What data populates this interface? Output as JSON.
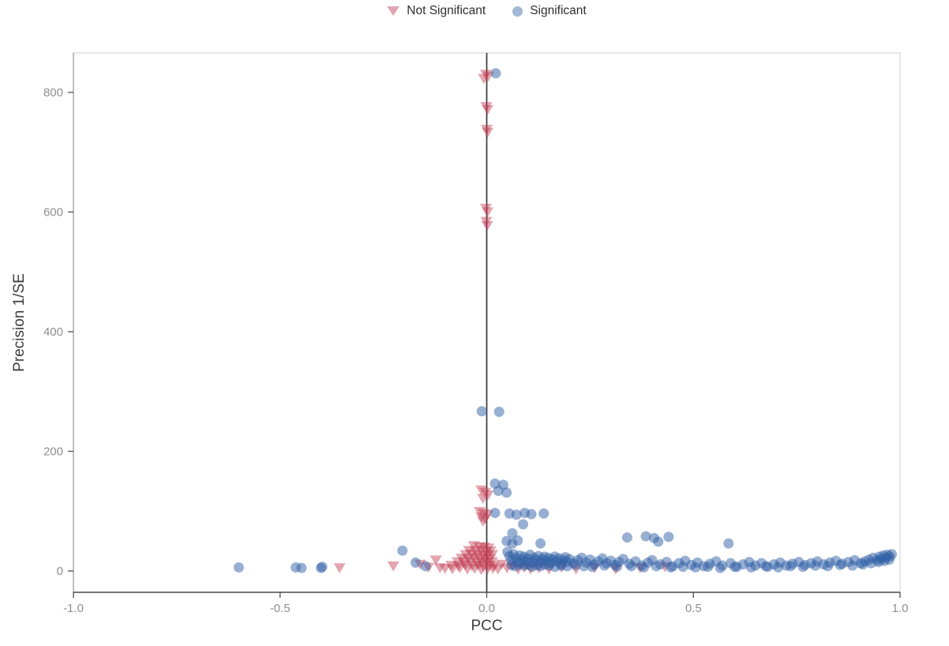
{
  "chart_data": {
    "type": "scatter",
    "title": "",
    "xlabel": "PCC",
    "ylabel": "Precision 1/SE",
    "xlim": [
      -1.0,
      1.0
    ],
    "ylim": [
      -35,
      870
    ],
    "grid": false,
    "legend_position": "top-center",
    "zero_line_x": 0.0,
    "x_ticks": {
      "values": [
        -1.0,
        -0.5,
        0.0,
        0.5,
        1.0
      ],
      "labels": [
        "-1.0",
        "-0.5",
        "0.0",
        "0.5",
        "1.0"
      ]
    },
    "y_ticks": {
      "values": [
        0,
        200,
        400,
        600,
        800
      ],
      "labels": [
        "0",
        "200",
        "400",
        "600",
        "800"
      ]
    },
    "colors": {
      "not_significant": "#c23a50",
      "significant": "#2f5fa5",
      "zero_line": "#3a3a3a",
      "panel_border": "#d6d6d6",
      "axis_line": "#4d4d4d",
      "tick_label": "#8f8f8f",
      "axis_title": "#3d3d3d"
    },
    "legend": [
      {
        "label": "Not Significant",
        "marker": "triangle-down",
        "color": "#c23a50"
      },
      {
        "label": "Significant",
        "marker": "circle",
        "color": "#2f5fa5"
      }
    ],
    "series": [
      {
        "name": "Not Significant",
        "marker": "triangle-down",
        "color": "#c23a50",
        "opacity": 0.45,
        "points": [
          [
            -0.002,
            831
          ],
          [
            0.004,
            828
          ],
          [
            -0.007,
            824
          ],
          [
            -0.001,
            777
          ],
          [
            0.002,
            772
          ],
          [
            0.0,
            739
          ],
          [
            0.002,
            734
          ],
          [
            -0.002,
            607
          ],
          [
            0.002,
            601
          ],
          [
            -0.001,
            585
          ],
          [
            0.001,
            578
          ],
          [
            -0.013,
            136
          ],
          [
            -0.004,
            132
          ],
          [
            0.003,
            128
          ],
          [
            -0.009,
            122
          ],
          [
            -0.017,
            100
          ],
          [
            -0.007,
            97
          ],
          [
            0.002,
            95
          ],
          [
            -0.013,
            91
          ],
          [
            -0.004,
            88
          ],
          [
            -0.009,
            84
          ],
          [
            -0.031,
            43
          ],
          [
            -0.018,
            41
          ],
          [
            -0.006,
            41
          ],
          [
            0.005,
            39
          ],
          [
            -0.043,
            35
          ],
          [
            -0.028,
            34
          ],
          [
            -0.014,
            36
          ],
          [
            -0.002,
            33
          ],
          [
            0.009,
            34
          ],
          [
            -0.051,
            28
          ],
          [
            -0.037,
            29
          ],
          [
            -0.022,
            27
          ],
          [
            -0.01,
            28
          ],
          [
            0.002,
            26
          ],
          [
            0.013,
            28
          ],
          [
            -0.061,
            22
          ],
          [
            -0.045,
            21
          ],
          [
            -0.03,
            23
          ],
          [
            -0.016,
            20
          ],
          [
            -0.004,
            22
          ],
          [
            0.008,
            21
          ],
          [
            -0.071,
            16
          ],
          [
            -0.055,
            15
          ],
          [
            -0.039,
            17
          ],
          [
            -0.024,
            14
          ],
          [
            -0.012,
            16
          ],
          [
            0.0,
            15
          ],
          [
            0.013,
            16
          ],
          [
            -0.086,
            10
          ],
          [
            -0.069,
            9
          ],
          [
            -0.052,
            11
          ],
          [
            -0.036,
            9
          ],
          [
            -0.02,
            10
          ],
          [
            -0.008,
            8
          ],
          [
            0.005,
            10
          ],
          [
            0.017,
            9
          ],
          [
            -0.101,
            5
          ],
          [
            -0.083,
            4
          ],
          [
            -0.065,
            6
          ],
          [
            -0.047,
            4
          ],
          [
            -0.029,
            5
          ],
          [
            -0.013,
            3
          ],
          [
            0.002,
            4
          ],
          [
            0.015,
            5
          ],
          [
            0.027,
            4
          ],
          [
            -0.356,
            6
          ],
          [
            -0.226,
            9
          ],
          [
            -0.161,
            12
          ],
          [
            -0.141,
            7
          ],
          [
            -0.123,
            19
          ],
          [
            -0.113,
            6
          ],
          [
            0.036,
            12
          ],
          [
            0.049,
            6
          ],
          [
            0.061,
            9
          ],
          [
            0.076,
            4
          ],
          [
            0.091,
            7
          ],
          [
            0.106,
            4
          ],
          [
            0.126,
            6
          ],
          [
            0.151,
            4
          ],
          [
            0.181,
            7
          ],
          [
            0.216,
            4
          ],
          [
            0.261,
            6
          ],
          [
            0.312,
            4
          ],
          [
            0.371,
            6
          ],
          [
            0.431,
            8
          ]
        ]
      },
      {
        "name": "Significant",
        "marker": "circle",
        "color": "#2f5fa5",
        "opacity": 0.5,
        "points": [
          [
            0.022,
            832
          ],
          [
            -0.012,
            267
          ],
          [
            0.03,
            266
          ],
          [
            0.02,
            146
          ],
          [
            0.04,
            144
          ],
          [
            0.028,
            134
          ],
          [
            0.048,
            131
          ],
          [
            0.02,
            97
          ],
          [
            0.055,
            96
          ],
          [
            0.072,
            94
          ],
          [
            0.088,
            78
          ],
          [
            0.092,
            97
          ],
          [
            0.108,
            95
          ],
          [
            0.138,
            96
          ],
          [
            0.062,
            63
          ],
          [
            0.048,
            50
          ],
          [
            0.062,
            46
          ],
          [
            0.075,
            51
          ],
          [
            0.13,
            46
          ],
          [
            0.34,
            56
          ],
          [
            0.385,
            58
          ],
          [
            0.405,
            55
          ],
          [
            0.44,
            57
          ],
          [
            0.415,
            49
          ],
          [
            0.585,
            46
          ],
          [
            -0.6,
            6
          ],
          [
            -0.462,
            6
          ],
          [
            -0.448,
            5
          ],
          [
            -0.401,
            5
          ],
          [
            -0.398,
            7
          ],
          [
            -0.204,
            34
          ],
          [
            -0.172,
            14
          ],
          [
            -0.148,
            8
          ],
          [
            0.05,
            32
          ],
          [
            0.055,
            25
          ],
          [
            0.06,
            18
          ],
          [
            0.065,
            28
          ],
          [
            0.07,
            22
          ],
          [
            0.075,
            15
          ],
          [
            0.08,
            26
          ],
          [
            0.085,
            19
          ],
          [
            0.09,
            24
          ],
          [
            0.095,
            16
          ],
          [
            0.1,
            21
          ],
          [
            0.105,
            27
          ],
          [
            0.11,
            14
          ],
          [
            0.115,
            22
          ],
          [
            0.12,
            18
          ],
          [
            0.125,
            25
          ],
          [
            0.13,
            15
          ],
          [
            0.135,
            20
          ],
          [
            0.14,
            24
          ],
          [
            0.145,
            17
          ],
          [
            0.15,
            22
          ],
          [
            0.155,
            13
          ],
          [
            0.16,
            19
          ],
          [
            0.165,
            24
          ],
          [
            0.17,
            16
          ],
          [
            0.175,
            21
          ],
          [
            0.18,
            12
          ],
          [
            0.185,
            18
          ],
          [
            0.19,
            23
          ],
          [
            0.195,
            15
          ],
          [
            0.2,
            20
          ],
          [
            0.21,
            13
          ],
          [
            0.22,
            18
          ],
          [
            0.23,
            22
          ],
          [
            0.24,
            14
          ],
          [
            0.25,
            19
          ],
          [
            0.26,
            11
          ],
          [
            0.27,
            16
          ],
          [
            0.28,
            21
          ],
          [
            0.29,
            13
          ],
          [
            0.3,
            17
          ],
          [
            0.31,
            10
          ],
          [
            0.32,
            15
          ],
          [
            0.33,
            20
          ],
          [
            0.345,
            12
          ],
          [
            0.36,
            16
          ],
          [
            0.375,
            9
          ],
          [
            0.39,
            14
          ],
          [
            0.4,
            18
          ],
          [
            0.42,
            11
          ],
          [
            0.435,
            15
          ],
          [
            0.45,
            8
          ],
          [
            0.465,
            13
          ],
          [
            0.48,
            17
          ],
          [
            0.495,
            10
          ],
          [
            0.51,
            14
          ],
          [
            0.525,
            8
          ],
          [
            0.54,
            12
          ],
          [
            0.555,
            16
          ],
          [
            0.57,
            9
          ],
          [
            0.59,
            13
          ],
          [
            0.605,
            7
          ],
          [
            0.62,
            11
          ],
          [
            0.635,
            15
          ],
          [
            0.65,
            9
          ],
          [
            0.665,
            13
          ],
          [
            0.68,
            7
          ],
          [
            0.695,
            11
          ],
          [
            0.71,
            14
          ],
          [
            0.725,
            9
          ],
          [
            0.74,
            12
          ],
          [
            0.755,
            15
          ],
          [
            0.77,
            10
          ],
          [
            0.785,
            13
          ],
          [
            0.8,
            16
          ],
          [
            0.815,
            11
          ],
          [
            0.83,
            14
          ],
          [
            0.845,
            17
          ],
          [
            0.86,
            12
          ],
          [
            0.875,
            15
          ],
          [
            0.89,
            18
          ],
          [
            0.905,
            13
          ],
          [
            0.915,
            16
          ],
          [
            0.925,
            19
          ],
          [
            0.935,
            22
          ],
          [
            0.945,
            18
          ],
          [
            0.95,
            24
          ],
          [
            0.955,
            20
          ],
          [
            0.96,
            26
          ],
          [
            0.965,
            22
          ],
          [
            0.97,
            27
          ],
          [
            0.975,
            24
          ],
          [
            0.98,
            28
          ],
          [
            0.06,
            10
          ],
          [
            0.07,
            8
          ],
          [
            0.08,
            12
          ],
          [
            0.09,
            9
          ],
          [
            0.1,
            11
          ],
          [
            0.11,
            7
          ],
          [
            0.12,
            10
          ],
          [
            0.13,
            8
          ],
          [
            0.14,
            11
          ],
          [
            0.15,
            9
          ],
          [
            0.165,
            7
          ],
          [
            0.18,
            9
          ],
          [
            0.195,
            8
          ],
          [
            0.215,
            10
          ],
          [
            0.235,
            8
          ],
          [
            0.255,
            7
          ],
          [
            0.285,
            9
          ],
          [
            0.315,
            7
          ],
          [
            0.35,
            8
          ],
          [
            0.38,
            6
          ],
          [
            0.41,
            8
          ],
          [
            0.445,
            6
          ],
          [
            0.475,
            7
          ],
          [
            0.505,
            6
          ],
          [
            0.535,
            7
          ],
          [
            0.565,
            5
          ],
          [
            0.6,
            7
          ],
          [
            0.64,
            6
          ],
          [
            0.675,
            8
          ],
          [
            0.705,
            6
          ],
          [
            0.735,
            8
          ],
          [
            0.765,
            7
          ],
          [
            0.795,
            9
          ],
          [
            0.825,
            8
          ],
          [
            0.855,
            10
          ],
          [
            0.885,
            9
          ],
          [
            0.91,
            11
          ],
          [
            0.93,
            13
          ],
          [
            0.948,
            15
          ],
          [
            0.962,
            17
          ],
          [
            0.974,
            19
          ]
        ]
      }
    ]
  }
}
